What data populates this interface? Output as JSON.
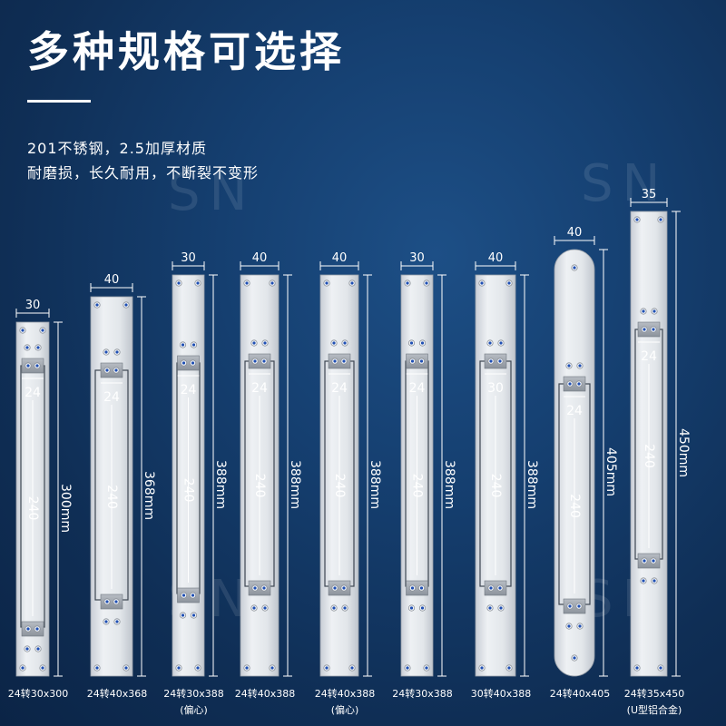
{
  "header": {
    "title": "多种规格可选择",
    "line1": "201不锈钢，2.5加厚材质",
    "line2": "耐磨损，长久耐用，不断裂不变形"
  },
  "watermark": "SN",
  "plates": [
    {
      "width": "30",
      "inner": "24",
      "length": "240",
      "height": "300mm",
      "label": "24转30x300",
      "sub": ""
    },
    {
      "width": "40",
      "inner": "24",
      "length": "240",
      "height": "368mm",
      "label": "24转40x368",
      "sub": ""
    },
    {
      "width": "30",
      "inner": "24",
      "length": "240",
      "height": "388mm",
      "label": "24转30x388",
      "sub": "(偏心)"
    },
    {
      "width": "40",
      "inner": "24",
      "length": "240",
      "height": "388mm",
      "label": "24转40x388",
      "sub": ""
    },
    {
      "width": "40",
      "inner": "24",
      "length": "240",
      "height": "388mm",
      "label": "24转40x388",
      "sub": "(偏心)"
    },
    {
      "width": "30",
      "inner": "24",
      "length": "240",
      "height": "388mm",
      "label": "24转30x388",
      "sub": ""
    },
    {
      "width": "40",
      "inner": "30",
      "length": "240",
      "height": "388mm",
      "label": "30转40x388",
      "sub": ""
    },
    {
      "width": "40",
      "inner": "24",
      "length": "240",
      "height": "405mm",
      "label": "24转40x405",
      "sub": ""
    },
    {
      "width": "35",
      "inner": "24",
      "length": "240",
      "height": "450mm",
      "label": "24转35x450",
      "sub": "(U型铝合金)"
    }
  ],
  "colors": {
    "background": "#153f70",
    "plate": "#dfe3e8",
    "slot": "#ffffff",
    "screw": "#1f4fb3"
  }
}
